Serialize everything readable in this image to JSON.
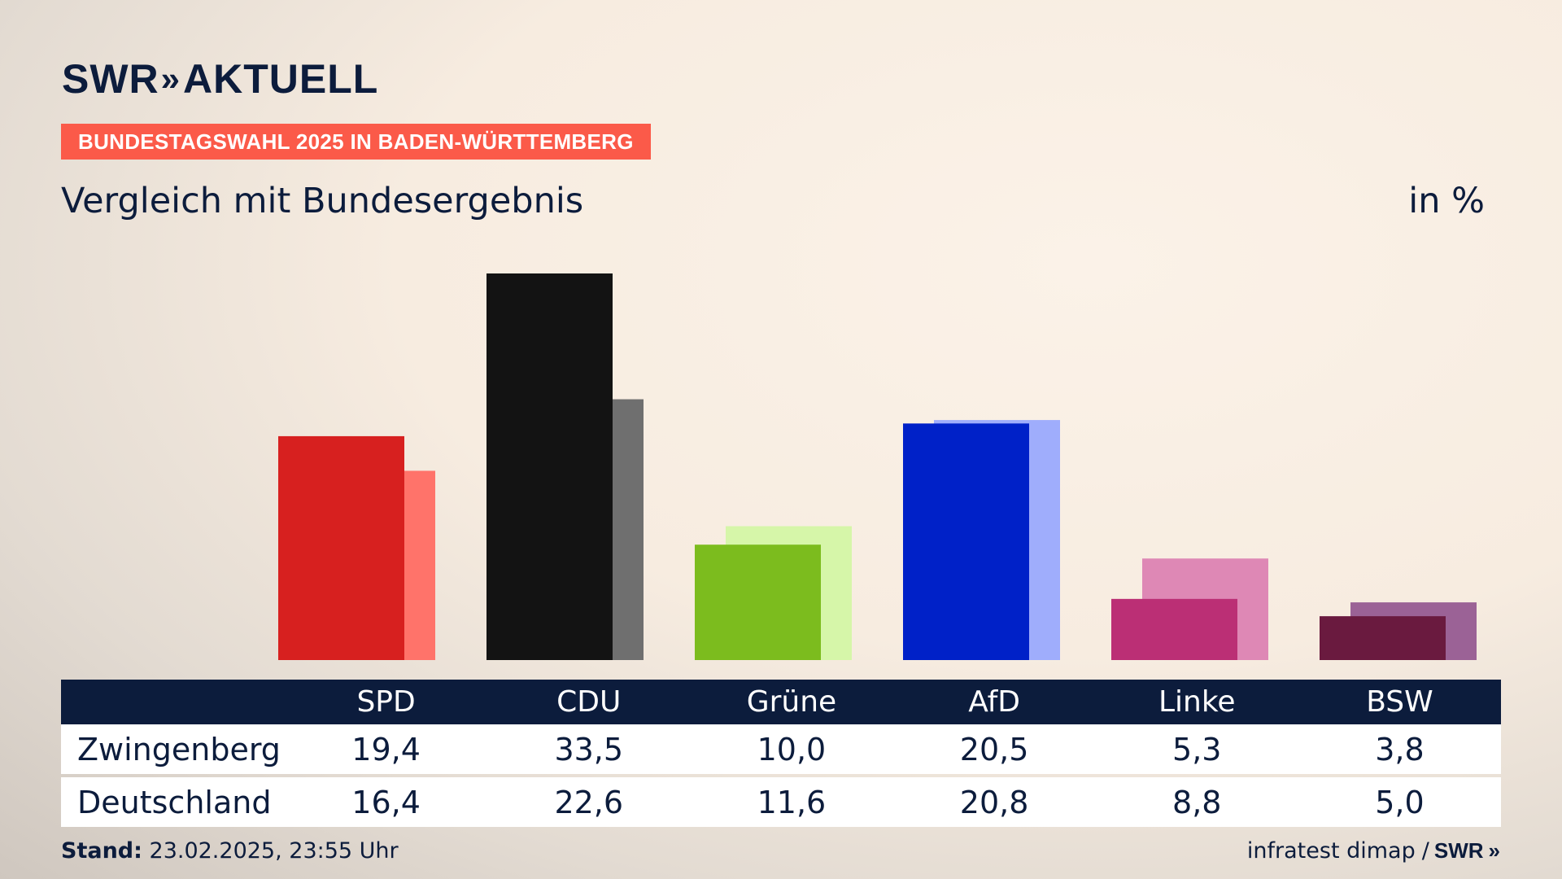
{
  "brand": {
    "name": "SWR",
    "chevrons": "»",
    "product": "AKTUELL"
  },
  "tag": "BUNDESTAGSWAHL 2025 IN BADEN-WÜRTTEMBERG",
  "subtitle": "Vergleich mit Bundesergebnis",
  "unit": "in %",
  "table": {
    "rows": [
      {
        "label": "Zwingenberg",
        "values": [
          "19,4",
          "33,5",
          "10,0",
          "20,5",
          "5,3",
          "3,8"
        ]
      },
      {
        "label": "Deutschland",
        "values": [
          "16,4",
          "22,6",
          "11,6",
          "20,8",
          "8,8",
          "5,0"
        ]
      }
    ]
  },
  "footer": {
    "stand_label": "Stand:",
    "stand_value": "23.02.2025, 23:55 Uhr",
    "source": "infratest dimap",
    "separator": "/",
    "source_brand": "SWR"
  },
  "chart_data": {
    "type": "bar",
    "categories": [
      "SPD",
      "CDU",
      "Grüne",
      "AfD",
      "Linke",
      "BSW"
    ],
    "series": [
      {
        "name": "Zwingenberg",
        "values": [
          19.4,
          33.5,
          10.0,
          20.5,
          5.3,
          3.8
        ],
        "colors": [
          "#d7201f",
          "#131313",
          "#7cbc1e",
          "#0021c8",
          "#bb2f75",
          "#6a1a3f"
        ]
      },
      {
        "name": "Deutschland",
        "values": [
          16.4,
          22.6,
          11.6,
          20.8,
          8.8,
          5.0
        ],
        "colors": [
          "#ff736a",
          "#6f6f6f",
          "#d6f6a9",
          "#9fadfc",
          "#de88b5",
          "#9b6296"
        ]
      }
    ],
    "ylim": [
      0,
      33.5
    ],
    "grid": false,
    "legend": "table below chart"
  }
}
